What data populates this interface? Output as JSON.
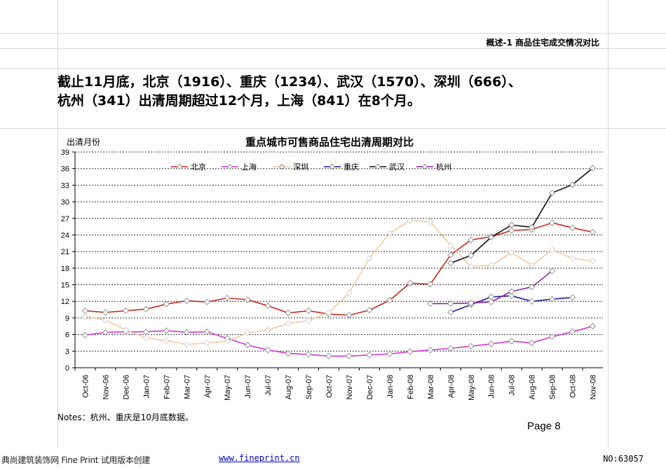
{
  "header": {
    "section_title": "概述-1  商品住宅成交情况对比"
  },
  "headline": {
    "line1": "截止11月底，北京（1916）、重庆（1234）、武汉（1570）、深圳（666）、",
    "line2": "杭州（341）出清周期超过12个月，上海（841）在8个月。"
  },
  "notes": "Notes：杭州、重庆是10月底数据。",
  "page_number": "Page 8",
  "footer": {
    "left_text": "典尚建筑装饰网 Fine Print 试用版本创建",
    "link_text": "www.fineprint.cn",
    "right_text": "NO:63057"
  },
  "chart_data": {
    "type": "line",
    "title": "重点城市可售商品住宅出清周期对比",
    "ylabel": "出清月份",
    "xlabel": "",
    "ylim": [
      0,
      39
    ],
    "yticks": [
      0,
      3,
      6,
      9,
      12,
      15,
      18,
      21,
      24,
      27,
      30,
      33,
      36,
      39
    ],
    "grid": true,
    "legend_position": "top",
    "categories": [
      "Oct-06",
      "Nov-06",
      "Dec-06",
      "Jan-07",
      "Feb-07",
      "Mar-07",
      "Apr-07",
      "May-07",
      "Jun-07",
      "Jul-07",
      "Aug-07",
      "Sep-07",
      "Oct-07",
      "Nov-07",
      "Dec-07",
      "Jan-08",
      "Feb-08",
      "Mar-08",
      "Apr-08",
      "May-08",
      "Jun-08",
      "Jul-08",
      "Aug-08",
      "Sep-08",
      "Oct-08",
      "Nov-08"
    ],
    "series": [
      {
        "name": "北京",
        "color": "#cc2a1e",
        "marker": true,
        "values": [
          10.3,
          10.0,
          10.3,
          10.6,
          11.5,
          12.1,
          11.9,
          12.6,
          12.3,
          11.2,
          9.9,
          10.3,
          9.7,
          9.5,
          10.4,
          12.2,
          15.3,
          15.1,
          20.4,
          23.1,
          23.7,
          24.8,
          25.0,
          26.2,
          25.3,
          24.5
        ]
      },
      {
        "name": "上海",
        "color": "#d633d6",
        "marker": true,
        "values": [
          5.9,
          6.4,
          6.5,
          6.5,
          6.7,
          6.4,
          6.5,
          5.3,
          4.1,
          3.2,
          2.6,
          2.4,
          2.1,
          2.1,
          2.3,
          2.5,
          2.9,
          3.2,
          3.5,
          3.9,
          4.3,
          4.8,
          4.5,
          5.6,
          6.5,
          7.5
        ]
      },
      {
        "name": "深圳",
        "color": "#f6c99c",
        "marker": false,
        "values": [
          9.3,
          8.6,
          6.8,
          5.4,
          4.9,
          4.2,
          4.5,
          4.8,
          6.3,
          6.8,
          8.0,
          8.5,
          10.0,
          13.5,
          19.8,
          24.3,
          26.6,
          26.4,
          22.1,
          18.3,
          18.5,
          20.8,
          18.5,
          21.3,
          19.8,
          19.3
        ]
      },
      {
        "name": "重庆",
        "color": "#1a1a9e",
        "marker": true,
        "values": [
          null,
          null,
          null,
          null,
          null,
          null,
          null,
          null,
          null,
          null,
          null,
          null,
          null,
          null,
          null,
          null,
          null,
          null,
          10.0,
          11.4,
          12.8,
          13.0,
          12.0,
          12.4,
          12.7,
          null
        ]
      },
      {
        "name": "武汉",
        "color": "#111111",
        "marker": true,
        "values": [
          null,
          null,
          null,
          null,
          null,
          null,
          null,
          null,
          null,
          null,
          null,
          null,
          null,
          null,
          null,
          null,
          null,
          null,
          18.9,
          20.3,
          23.6,
          25.8,
          25.4,
          31.6,
          33.1,
          36.1
        ]
      },
      {
        "name": "杭州",
        "color": "#8a2a9e",
        "marker": true,
        "values": [
          null,
          null,
          null,
          null,
          null,
          null,
          null,
          null,
          null,
          null,
          null,
          null,
          null,
          null,
          null,
          null,
          null,
          11.6,
          11.6,
          11.7,
          11.9,
          13.8,
          14.6,
          17.5,
          null,
          null
        ]
      }
    ]
  }
}
